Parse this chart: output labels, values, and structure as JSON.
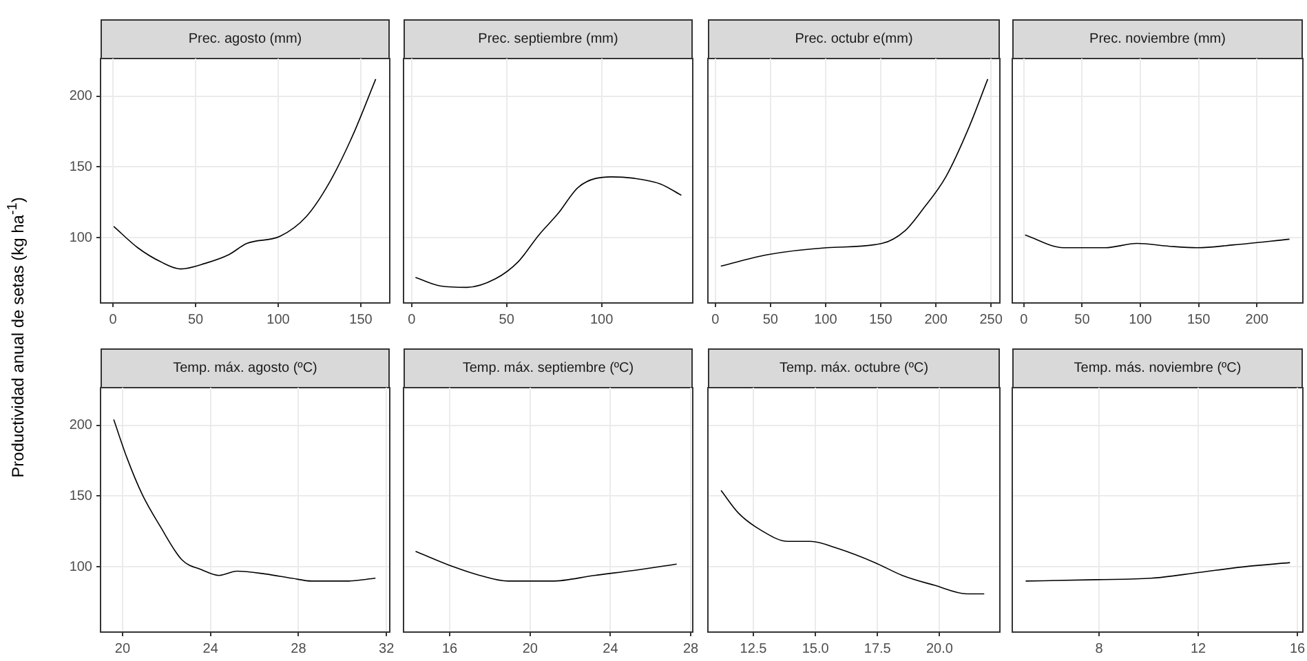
{
  "chart_data": [
    {
      "type": "line",
      "title": "Prec. agosto (mm)",
      "ylabel": "Productividad anual de setas (kg  ha$^{-1}$)",
      "color": "#000000",
      "grid": true,
      "x": [
        0.5,
        15,
        29,
        41,
        56,
        70,
        81,
        101,
        117,
        131,
        145,
        159
      ],
      "values": [
        108,
        93,
        83,
        78,
        82,
        88,
        96,
        101,
        115,
        139,
        172,
        212
      ],
      "xlim": [
        -7.5,
        167.5
      ],
      "xticks": [
        0,
        50,
        100,
        150
      ],
      "ylim": [
        54,
        227
      ],
      "yticks": [
        100,
        150,
        200
      ]
    },
    {
      "type": "line",
      "title": "Prec. septiembre (mm)",
      "color": "#000000",
      "grid": true,
      "x": [
        2,
        15,
        29,
        44,
        56,
        67,
        77,
        88,
        105,
        117,
        131,
        142
      ],
      "values": [
        72,
        66,
        65,
        71,
        83,
        102,
        117,
        136,
        143,
        142,
        138,
        130
      ],
      "xlim": [
        -4.3,
        148
      ],
      "xticks": [
        0,
        50,
        100
      ],
      "ylim": [
        54,
        227
      ],
      "yticks": [
        100,
        150,
        200
      ],
      "tick_labels": "x"
    },
    {
      "type": "line",
      "title": "Prec. octubr e(mm)",
      "color": "#000000",
      "grid": true,
      "x": [
        5,
        47,
        101,
        151,
        172,
        188,
        209,
        230,
        247
      ],
      "values": [
        80,
        88,
        93,
        96,
        105,
        120,
        143,
        178,
        212
      ],
      "xlim": [
        -6.7,
        258
      ],
      "xticks": [
        0,
        50,
        100,
        150,
        200,
        250
      ],
      "ylim": [
        54,
        227
      ],
      "yticks": [
        100,
        150,
        200
      ],
      "tick_labels": "x"
    },
    {
      "type": "line",
      "title": "Prec. noviembre (mm)",
      "color": "#000000",
      "grid": true,
      "x": [
        1,
        34,
        70,
        97,
        125,
        149,
        180,
        228
      ],
      "values": [
        102,
        93,
        93,
        96,
        94,
        93,
        95,
        99
      ],
      "xlim": [
        -10,
        239.5
      ],
      "xticks": [
        0,
        50,
        100,
        150,
        200
      ],
      "ylim": [
        54,
        227
      ],
      "yticks": [
        100,
        150,
        200
      ],
      "tick_labels": "x"
    },
    {
      "type": "line",
      "title": "Temp. máx. agosto (ºC)",
      "color": "#000000",
      "grid": true,
      "x": [
        19.6,
        20.2,
        20.9,
        21.7,
        22.7,
        23.6,
        24.4,
        25.2,
        26.5,
        27.7,
        28.6,
        30.2,
        31.5
      ],
      "values": [
        204,
        177,
        151,
        129,
        105,
        98,
        94,
        97,
        95,
        92,
        90,
        90,
        92
      ],
      "xlim": [
        19,
        32.15
      ],
      "xticks": [
        20,
        24,
        28,
        32
      ],
      "ylim": [
        54,
        227
      ],
      "yticks": [
        100,
        150,
        200
      ]
    },
    {
      "type": "line",
      "title": "Temp. máx. septiembre (ºC)",
      "color": "#000000",
      "grid": true,
      "x": [
        14.3,
        16.2,
        17.5,
        18.9,
        21.1,
        23.2,
        25.4,
        27.3
      ],
      "values": [
        111,
        100,
        94,
        90,
        90,
        94,
        98,
        102
      ],
      "xlim": [
        13.7,
        28.1
      ],
      "xticks": [
        16,
        20,
        24,
        28
      ],
      "ylim": [
        54,
        227
      ],
      "yticks": [
        100,
        150,
        200
      ],
      "tick_labels": "x"
    },
    {
      "type": "line",
      "title": "Temp. máx. octubre (ºC)",
      "color": "#000000",
      "grid": true,
      "x": [
        11.2,
        11.9,
        12.8,
        13.9,
        14.8,
        15.9,
        17.4,
        18.5,
        19.8,
        21.1,
        21.8
      ],
      "values": [
        154,
        138,
        126,
        118,
        118,
        113,
        103,
        94,
        87,
        81,
        81
      ],
      "xlim": [
        10.67,
        22.43
      ],
      "xticks": [
        {
          "value": 12.5,
          "label": "12.5"
        },
        {
          "value": 15,
          "label": "15.0"
        },
        {
          "value": 17.5,
          "label": "17.5"
        },
        {
          "value": 20,
          "label": "20.0"
        }
      ],
      "ylim": [
        54,
        227
      ],
      "yticks": [
        100,
        150,
        200
      ],
      "tick_labels": "x"
    },
    {
      "type": "line",
      "title": "Temp. más. noviembre (ºC)",
      "color": "#000000",
      "grid": true,
      "x": [
        5.04,
        7.9,
        10.1,
        12.0,
        13.8,
        15.7
      ],
      "values": [
        90,
        91,
        92,
        96,
        100,
        103
      ],
      "xlim": [
        4.5,
        16.22
      ],
      "xticks": [
        8,
        12,
        16
      ],
      "ylim": [
        54,
        227
      ],
      "yticks": [
        100,
        150,
        200
      ],
      "tick_labels": "x"
    }
  ]
}
